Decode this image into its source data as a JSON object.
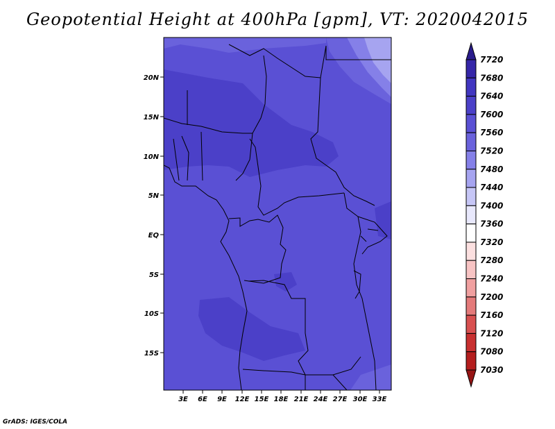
{
  "title": "Geopotential Height at 400hPa [gpm], VT: 2020042015",
  "footer": "GrADS: IGES/COLA",
  "map": {
    "lat_ticks": [
      "20N",
      "15N",
      "10N",
      "5N",
      "EQ",
      "5S",
      "10S",
      "15S"
    ],
    "lon_ticks": [
      "3E",
      "6E",
      "9E",
      "12E",
      "15E",
      "18E",
      "21E",
      "24E",
      "27E",
      "30E",
      "33E"
    ]
  },
  "legend": {
    "labels": [
      "7720",
      "7680",
      "7640",
      "7600",
      "7560",
      "7520",
      "7480",
      "7440",
      "7400",
      "7360",
      "7320",
      "7280",
      "7240",
      "7200",
      "7160",
      "7120",
      "7080",
      "7030"
    ],
    "colors": [
      "#2a1c8c",
      "#3526a8",
      "#4136c0",
      "#4b40c8",
      "#5a50d4",
      "#6a62dc",
      "#8580e8",
      "#a6a4f0",
      "#c6c6f6",
      "#e8e8fc",
      "#ffffff",
      "#fce0e0",
      "#f8c4c4",
      "#f0a0a0",
      "#e47a7a",
      "#d85050",
      "#c83030",
      "#b41e1e",
      "#961414"
    ]
  }
}
